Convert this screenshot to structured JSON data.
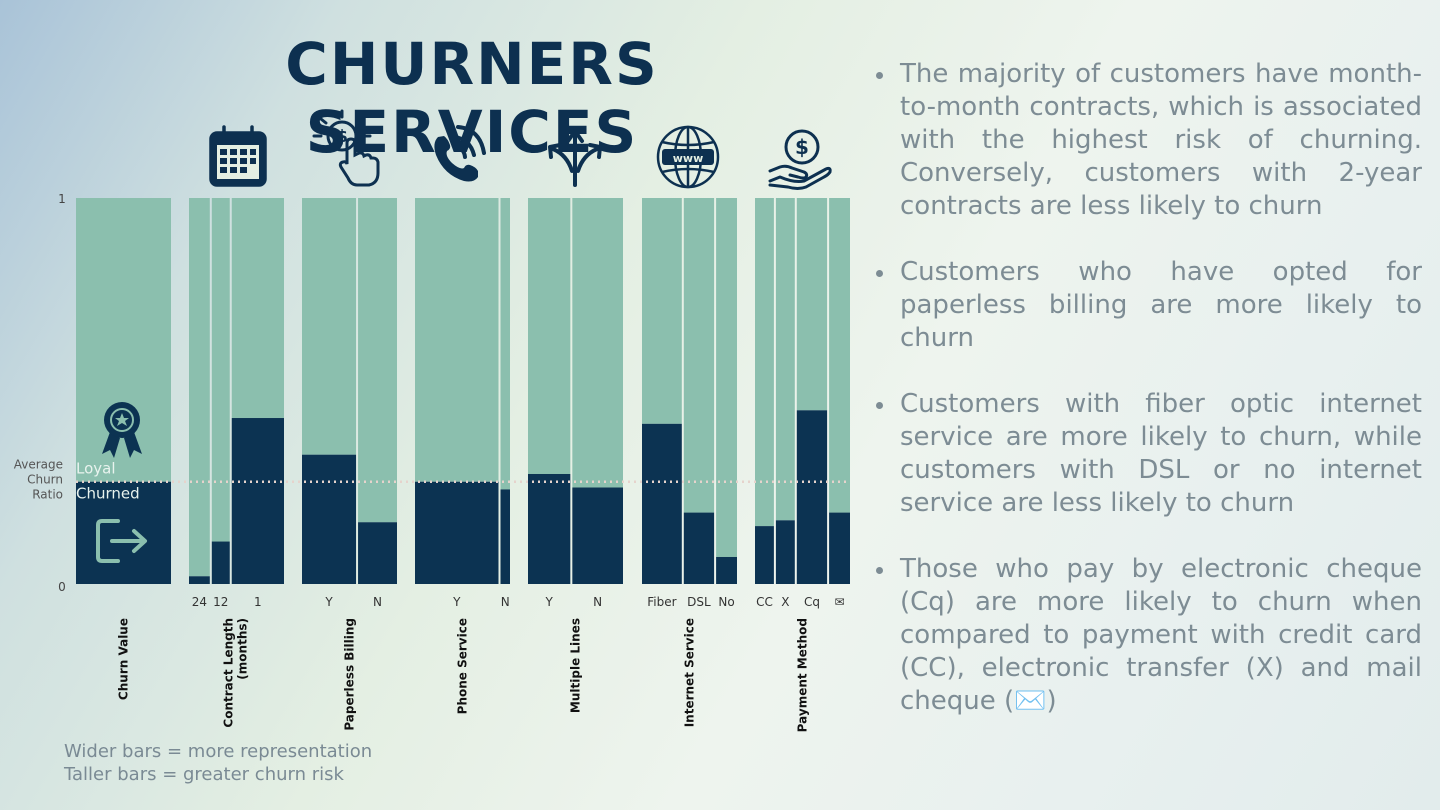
{
  "title": "CHURNERS SERVICES",
  "colors": {
    "loyal": "#8bbfae",
    "churned": "#0c3352",
    "navy": "#0d3050",
    "text_gray": "#7d8c94",
    "average_line": "#e6d3cc"
  },
  "notes": [
    "The majority of customers have month-to-month contracts, which is associated with the highest risk of churning. Conversely, customers with 2-year contracts are less likely to churn",
    "Customers who have opted for paperless billing are more likely to churn",
    "Customers with fiber optic internet service are more likely to churn, while customers with DSL or no internet service are less likely to churn",
    "Those who pay by electronic cheque (Cq) are more likely to churn when compared to payment with credit card (CC), electronic transfer (X) and mail cheque (✉️)"
  ],
  "legend_note": [
    "Wider bars = more representation",
    "Taller bars = greater churn risk"
  ],
  "chart_data": {
    "type": "bar",
    "subtype": "marimekko",
    "ylim": [
      0,
      1
    ],
    "yticks": [
      "0",
      "1"
    ],
    "average_label": [
      "Average",
      "Churn",
      "Ratio"
    ],
    "average_churn": 0.265,
    "segment_labels": {
      "loyal": "Loyal",
      "churned": "Churned"
    },
    "groups": [
      {
        "name": "Churn Value",
        "icon": "",
        "categories": [
          ""
        ],
        "widths": [
          1.0
        ],
        "churn": [
          0.265
        ]
      },
      {
        "name": "Contract Length (months)",
        "icon": "calendar-icon",
        "categories": [
          "24",
          "12",
          "1"
        ],
        "widths": [
          0.24,
          0.21,
          0.55
        ],
        "churn": [
          0.02,
          0.11,
          0.43
        ]
      },
      {
        "name": "Paperless Billing",
        "icon": "payment-click-icon",
        "categories": [
          "Y",
          "N"
        ],
        "widths": [
          0.59,
          0.41
        ],
        "churn": [
          0.335,
          0.16
        ]
      },
      {
        "name": "Phone Service",
        "icon": "phone-icon",
        "categories": [
          "Y",
          "N"
        ],
        "widths": [
          0.9,
          0.1
        ],
        "churn": [
          0.265,
          0.245
        ]
      },
      {
        "name": "Multiple Lines",
        "icon": "split-arrows-icon",
        "categories": [
          "Y",
          "N"
        ],
        "widths": [
          0.42,
          0.48
        ],
        "churn": [
          0.285,
          0.25
        ]
      },
      {
        "name": "Internet Service",
        "icon": "globe-www-icon",
        "categories": [
          "Fiber",
          "DSL",
          "No"
        ],
        "widths": [
          0.44,
          0.34,
          0.22
        ],
        "churn": [
          0.415,
          0.185,
          0.07
        ]
      },
      {
        "name": "Payment Method",
        "icon": "money-hand-icon",
        "categories": [
          "CC",
          "X",
          "Cq",
          "✉"
        ],
        "widths": [
          0.22,
          0.22,
          0.34,
          0.22
        ],
        "churn": [
          0.15,
          0.165,
          0.45,
          0.185
        ]
      }
    ]
  }
}
